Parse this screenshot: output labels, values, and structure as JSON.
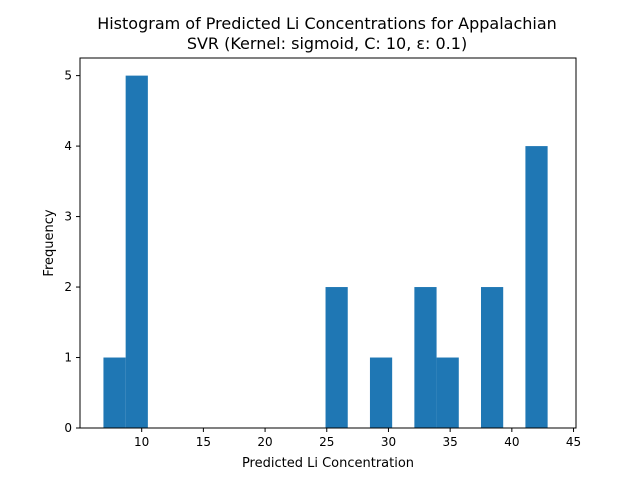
{
  "chart_data": {
    "type": "histogram",
    "title": "Histogram of Predicted Li Concentrations for Appalachian",
    "subtitle": "SVR (Kernel: sigmoid, C: 10, ε: 0.1)",
    "xlabel": "Predicted Li Concentration",
    "ylabel": "Frequency",
    "xlim": [
      5.0,
      45.2
    ],
    "ylim": [
      0,
      5.25
    ],
    "xticks": [
      10,
      15,
      20,
      25,
      30,
      35,
      40,
      45
    ],
    "yticks": [
      0,
      1,
      2,
      3,
      4,
      5
    ],
    "bar_color": "#1f77b4",
    "bin_edges": [
      6.9,
      8.7,
      10.5,
      12.3,
      14.1,
      15.9,
      17.7,
      19.5,
      21.3,
      23.1,
      24.9,
      26.7,
      28.5,
      30.3,
      32.1,
      33.9,
      35.7,
      37.5,
      39.3,
      41.1,
      42.9
    ],
    "counts": [
      1,
      5,
      0,
      0,
      0,
      0,
      0,
      0,
      0,
      0,
      2,
      0,
      1,
      0,
      2,
      1,
      0,
      2,
      0,
      4
    ],
    "grid": false
  }
}
